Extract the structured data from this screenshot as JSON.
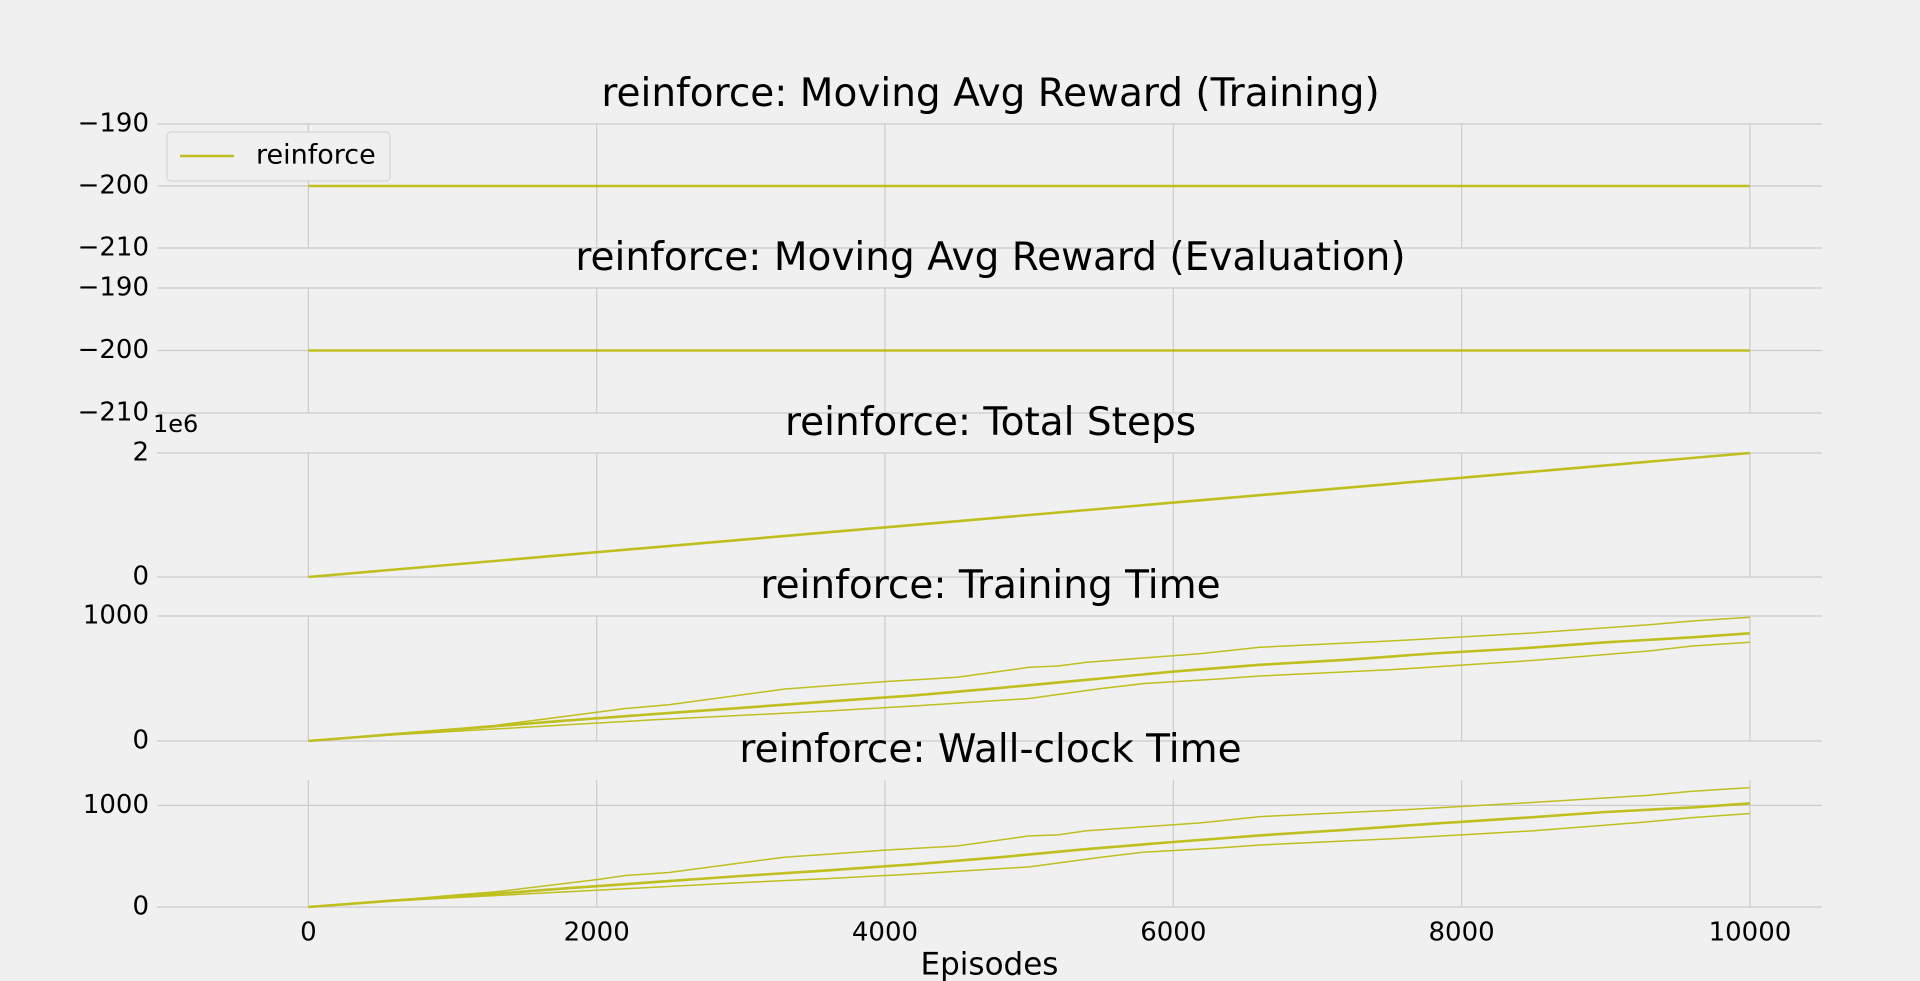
{
  "chart_data": [
    {
      "type": "line",
      "title": "reinforce: Moving Avg Reward (Training)",
      "xlabel": "",
      "ylabel": "",
      "xlim": [
        -1050,
        10500
      ],
      "ylim": [
        -210,
        -190
      ],
      "yticks": [
        -190,
        -200,
        -210
      ],
      "ytick_labels": [
        "−190",
        "−200",
        "−210"
      ],
      "grid": true,
      "legend": {
        "position": "top-left",
        "entries": [
          "reinforce"
        ]
      },
      "series": [
        {
          "name": "reinforce",
          "color": "#bfbf1f",
          "x": [
            0,
            10000
          ],
          "values": [
            -200,
            -200
          ]
        }
      ]
    },
    {
      "type": "line",
      "title": "reinforce: Moving Avg Reward (Evaluation)",
      "xlabel": "",
      "ylabel": "",
      "xlim": [
        -1050,
        10500
      ],
      "ylim": [
        -210,
        -190
      ],
      "yticks": [
        -190,
        -200,
        -210
      ],
      "ytick_labels": [
        "−190",
        "−200",
        "−210"
      ],
      "grid": true,
      "series": [
        {
          "color": "#bfbf1f",
          "x": [
            0,
            10000
          ],
          "values": [
            -200,
            -200
          ]
        }
      ]
    },
    {
      "type": "line",
      "title": "reinforce: Total Steps",
      "xlabel": "",
      "ylabel": "",
      "offset_label": "1e6",
      "xlim": [
        -1050,
        10500
      ],
      "ylim": [
        0,
        2
      ],
      "yticks": [
        2,
        0
      ],
      "ytick_labels": [
        "2",
        "0"
      ],
      "grid": true,
      "series": [
        {
          "color": "#bfbf1f",
          "x": [
            0,
            10000
          ],
          "values": [
            0,
            2
          ]
        }
      ]
    },
    {
      "type": "line",
      "title": "reinforce: Training Time",
      "xlabel": "",
      "ylabel": "",
      "xlim": [
        -1050,
        10500
      ],
      "ylim": [
        0,
        1000
      ],
      "yticks": [
        1000,
        0
      ],
      "ytick_labels": [
        "1000",
        "0"
      ],
      "grid": true,
      "series": [
        {
          "role": "mean",
          "color": "#bfbf1f",
          "x": [
            0,
            600,
            1200,
            1800,
            2400,
            3000,
            3600,
            4200,
            4800,
            5400,
            6000,
            6600,
            7200,
            7800,
            8400,
            9000,
            9600,
            10000
          ],
          "values": [
            0,
            55,
            110,
            165,
            215,
            265,
            315,
            365,
            425,
            490,
            555,
            610,
            650,
            700,
            740,
            790,
            830,
            862
          ]
        },
        {
          "role": "upper",
          "color": "#bfbf1f",
          "x": [
            0,
            600,
            1000,
            1300,
            2000,
            2200,
            2500,
            3300,
            3700,
            4000,
            4500,
            5000,
            5200,
            5400,
            5800,
            6200,
            6600,
            7500,
            8500,
            9300,
            9600,
            10000
          ],
          "values": [
            0,
            55,
            95,
            125,
            230,
            260,
            290,
            415,
            450,
            475,
            510,
            590,
            600,
            630,
            665,
            700,
            750,
            800,
            865,
            930,
            960,
            990
          ]
        },
        {
          "role": "lower",
          "color": "#bfbf1f",
          "x": [
            0,
            600,
            1200,
            1800,
            2400,
            3000,
            3600,
            4200,
            5000,
            5500,
            5800,
            6300,
            6600,
            7500,
            8500,
            9300,
            9600,
            10000
          ],
          "values": [
            0,
            50,
            90,
            130,
            170,
            205,
            240,
            280,
            340,
            420,
            460,
            495,
            520,
            570,
            645,
            720,
            760,
            790
          ]
        }
      ]
    },
    {
      "type": "line",
      "title": "reinforce: Wall-clock Time",
      "xlabel": "Episodes",
      "ylabel": "",
      "xlim": [
        -1050,
        10500
      ],
      "ylim": [
        0,
        1250
      ],
      "yticks": [
        1000,
        0
      ],
      "ytick_labels": [
        "1000",
        "0"
      ],
      "xticks": [
        0,
        2000,
        4000,
        6000,
        8000,
        10000
      ],
      "xtick_labels": [
        "0",
        "2000",
        "4000",
        "6000",
        "8000",
        "10000"
      ],
      "grid": true,
      "series": [
        {
          "role": "mean",
          "color": "#bfbf1f",
          "x": [
            0,
            600,
            1200,
            1800,
            2400,
            3000,
            3600,
            4200,
            4800,
            5400,
            6000,
            6600,
            7200,
            7800,
            8400,
            9000,
            9600,
            10000
          ],
          "values": [
            0,
            65,
            120,
            185,
            245,
            305,
            360,
            420,
            490,
            570,
            640,
            705,
            760,
            820,
            875,
            935,
            980,
            1020
          ]
        },
        {
          "role": "upper",
          "color": "#bfbf1f",
          "x": [
            0,
            600,
            1000,
            1300,
            2000,
            2200,
            2500,
            3300,
            3700,
            4000,
            4500,
            5000,
            5200,
            5400,
            5800,
            6200,
            6600,
            7500,
            8500,
            9300,
            9600,
            10000
          ],
          "values": [
            0,
            65,
            115,
            150,
            270,
            310,
            340,
            490,
            530,
            560,
            600,
            700,
            710,
            750,
            790,
            830,
            890,
            950,
            1030,
            1100,
            1140,
            1175
          ]
        },
        {
          "role": "lower",
          "color": "#bfbf1f",
          "x": [
            0,
            600,
            1200,
            1800,
            2400,
            3000,
            3600,
            4200,
            5000,
            5500,
            5800,
            6300,
            6600,
            7500,
            8500,
            9300,
            9600,
            10000
          ],
          "values": [
            0,
            60,
            105,
            150,
            195,
            240,
            280,
            325,
            395,
            490,
            540,
            580,
            610,
            670,
            750,
            840,
            880,
            920
          ]
        }
      ]
    }
  ]
}
